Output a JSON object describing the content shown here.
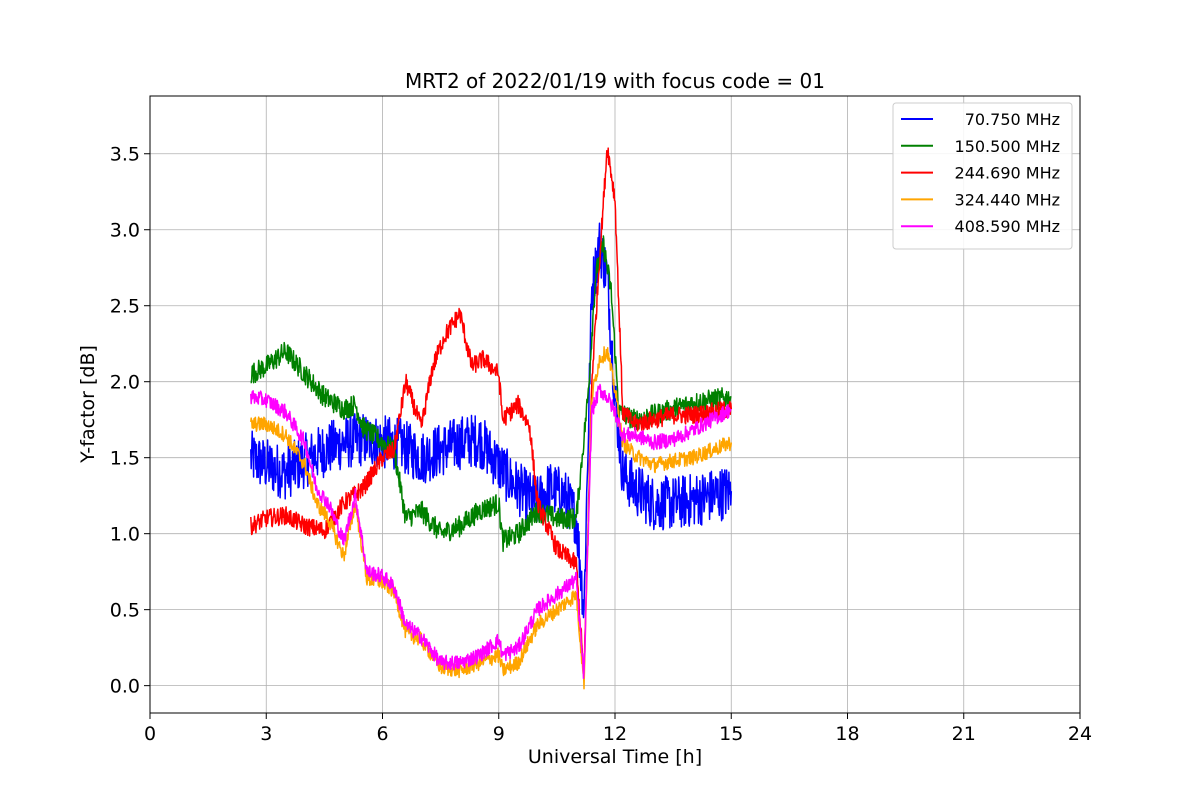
{
  "chart_data": {
    "type": "line",
    "title": "MRT2 of 2022/01/19 with focus code = 01",
    "xlabel": "Universal Time [h]",
    "ylabel": "Y-factor [dB]",
    "xlim": [
      0,
      24
    ],
    "ylim": [
      -0.18,
      3.88
    ],
    "xticks": [
      0,
      3,
      6,
      9,
      12,
      15,
      18,
      21,
      24
    ],
    "xtick_labels": [
      "0",
      "3",
      "6",
      "9",
      "12",
      "15",
      "18",
      "21",
      "24"
    ],
    "yticks": [
      0.0,
      0.5,
      1.0,
      1.5,
      2.0,
      2.5,
      3.0,
      3.5
    ],
    "ytick_labels": [
      "0.0",
      "0.5",
      "1.0",
      "1.5",
      "2.0",
      "2.5",
      "3.0",
      "3.5"
    ],
    "grid": true,
    "legend_position": "top-right",
    "series": [
      {
        "name": "70.750 MHz",
        "color": "#0000ff",
        "points": [
          [
            2.6,
            1.5
          ],
          [
            3.0,
            1.45
          ],
          [
            3.5,
            1.4
          ],
          [
            4.0,
            1.48
          ],
          [
            4.5,
            1.55
          ],
          [
            5.0,
            1.6
          ],
          [
            5.5,
            1.62
          ],
          [
            6.0,
            1.6
          ],
          [
            6.5,
            1.58
          ],
          [
            7.0,
            1.5
          ],
          [
            7.5,
            1.55
          ],
          [
            8.0,
            1.6
          ],
          [
            8.5,
            1.62
          ],
          [
            9.0,
            1.45
          ],
          [
            9.3,
            1.35
          ],
          [
            9.7,
            1.25
          ],
          [
            10.0,
            1.2
          ],
          [
            10.3,
            1.3
          ],
          [
            10.7,
            1.25
          ],
          [
            11.0,
            1.1
          ],
          [
            11.2,
            0.5
          ],
          [
            11.4,
            2.6
          ],
          [
            11.6,
            2.9
          ],
          [
            11.8,
            2.7
          ],
          [
            12.0,
            1.9
          ],
          [
            12.2,
            1.4
          ],
          [
            12.5,
            1.3
          ],
          [
            13.0,
            1.2
          ],
          [
            13.5,
            1.2
          ],
          [
            14.0,
            1.22
          ],
          [
            14.5,
            1.25
          ],
          [
            15.0,
            1.28
          ]
        ],
        "noise": 0.18
      },
      {
        "name": "150.500 MHz",
        "color": "#008000",
        "points": [
          [
            2.6,
            2.05
          ],
          [
            3.0,
            2.1
          ],
          [
            3.5,
            2.2
          ],
          [
            4.0,
            2.05
          ],
          [
            4.5,
            1.9
          ],
          [
            5.0,
            1.82
          ],
          [
            5.3,
            1.85
          ],
          [
            5.5,
            1.7
          ],
          [
            6.0,
            1.6
          ],
          [
            6.3,
            1.55
          ],
          [
            6.6,
            1.1
          ],
          [
            7.0,
            1.15
          ],
          [
            7.5,
            1.0
          ],
          [
            8.0,
            1.05
          ],
          [
            8.5,
            1.15
          ],
          [
            9.0,
            1.2
          ],
          [
            9.1,
            0.95
          ],
          [
            9.5,
            1.0
          ],
          [
            10.0,
            1.15
          ],
          [
            10.5,
            1.1
          ],
          [
            11.0,
            1.1
          ],
          [
            11.3,
            1.9
          ],
          [
            11.5,
            2.7
          ],
          [
            11.7,
            2.9
          ],
          [
            11.9,
            2.6
          ],
          [
            12.1,
            1.8
          ],
          [
            12.5,
            1.75
          ],
          [
            13.0,
            1.78
          ],
          [
            13.5,
            1.82
          ],
          [
            14.0,
            1.86
          ],
          [
            14.5,
            1.88
          ],
          [
            15.0,
            1.9
          ]
        ],
        "noise": 0.07
      },
      {
        "name": "244.690 MHz",
        "color": "#ff0000",
        "points": [
          [
            2.6,
            1.05
          ],
          [
            3.0,
            1.1
          ],
          [
            3.5,
            1.12
          ],
          [
            4.0,
            1.05
          ],
          [
            4.5,
            1.02
          ],
          [
            5.0,
            1.2
          ],
          [
            5.5,
            1.3
          ],
          [
            6.0,
            1.5
          ],
          [
            6.3,
            1.55
          ],
          [
            6.6,
            2.0
          ],
          [
            7.0,
            1.7
          ],
          [
            7.3,
            2.1
          ],
          [
            7.6,
            2.3
          ],
          [
            8.0,
            2.45
          ],
          [
            8.3,
            2.1
          ],
          [
            8.6,
            2.15
          ],
          [
            9.0,
            2.05
          ],
          [
            9.1,
            1.75
          ],
          [
            9.5,
            1.85
          ],
          [
            9.8,
            1.7
          ],
          [
            10.0,
            1.2
          ],
          [
            10.5,
            0.9
          ],
          [
            11.0,
            0.8
          ],
          [
            11.2,
            0.05
          ],
          [
            11.4,
            2.0
          ],
          [
            11.6,
            2.8
          ],
          [
            11.8,
            3.55
          ],
          [
            12.0,
            3.2
          ],
          [
            12.2,
            1.8
          ],
          [
            12.5,
            1.72
          ],
          [
            13.0,
            1.75
          ],
          [
            13.5,
            1.78
          ],
          [
            14.0,
            1.78
          ],
          [
            14.5,
            1.8
          ],
          [
            15.0,
            1.82
          ]
        ],
        "noise": 0.06
      },
      {
        "name": "324.440 MHz",
        "color": "#ffa500",
        "points": [
          [
            2.6,
            1.72
          ],
          [
            3.0,
            1.72
          ],
          [
            3.5,
            1.65
          ],
          [
            4.0,
            1.45
          ],
          [
            4.3,
            1.2
          ],
          [
            4.6,
            1.1
          ],
          [
            5.0,
            0.85
          ],
          [
            5.3,
            1.2
          ],
          [
            5.6,
            0.7
          ],
          [
            6.0,
            0.68
          ],
          [
            6.3,
            0.62
          ],
          [
            6.6,
            0.35
          ],
          [
            7.0,
            0.3
          ],
          [
            7.5,
            0.12
          ],
          [
            8.0,
            0.1
          ],
          [
            8.5,
            0.15
          ],
          [
            9.0,
            0.2
          ],
          [
            9.1,
            0.1
          ],
          [
            9.5,
            0.15
          ],
          [
            10.0,
            0.4
          ],
          [
            10.5,
            0.5
          ],
          [
            11.0,
            0.6
          ],
          [
            11.2,
            0.02
          ],
          [
            11.4,
            1.9
          ],
          [
            11.6,
            2.15
          ],
          [
            11.8,
            2.2
          ],
          [
            12.0,
            1.95
          ],
          [
            12.2,
            1.6
          ],
          [
            12.5,
            1.52
          ],
          [
            13.0,
            1.45
          ],
          [
            13.5,
            1.48
          ],
          [
            14.0,
            1.5
          ],
          [
            14.5,
            1.55
          ],
          [
            15.0,
            1.6
          ]
        ],
        "noise": 0.05
      },
      {
        "name": "408.590 MHz",
        "color": "#ff00ff",
        "points": [
          [
            2.6,
            1.9
          ],
          [
            3.0,
            1.88
          ],
          [
            3.5,
            1.8
          ],
          [
            4.0,
            1.6
          ],
          [
            4.3,
            1.3
          ],
          [
            4.6,
            1.2
          ],
          [
            5.0,
            0.95
          ],
          [
            5.3,
            1.25
          ],
          [
            5.6,
            0.75
          ],
          [
            6.0,
            0.72
          ],
          [
            6.3,
            0.65
          ],
          [
            6.6,
            0.4
          ],
          [
            7.0,
            0.32
          ],
          [
            7.5,
            0.15
          ],
          [
            8.0,
            0.15
          ],
          [
            8.5,
            0.2
          ],
          [
            9.0,
            0.3
          ],
          [
            9.1,
            0.2
          ],
          [
            9.5,
            0.25
          ],
          [
            10.0,
            0.5
          ],
          [
            10.5,
            0.6
          ],
          [
            11.0,
            0.7
          ],
          [
            11.2,
            0.05
          ],
          [
            11.4,
            1.8
          ],
          [
            11.6,
            1.95
          ],
          [
            11.8,
            1.9
          ],
          [
            12.0,
            1.8
          ],
          [
            12.2,
            1.65
          ],
          [
            12.5,
            1.65
          ],
          [
            13.0,
            1.6
          ],
          [
            13.5,
            1.62
          ],
          [
            14.0,
            1.68
          ],
          [
            14.5,
            1.75
          ],
          [
            15.0,
            1.82
          ]
        ],
        "noise": 0.05
      }
    ]
  }
}
